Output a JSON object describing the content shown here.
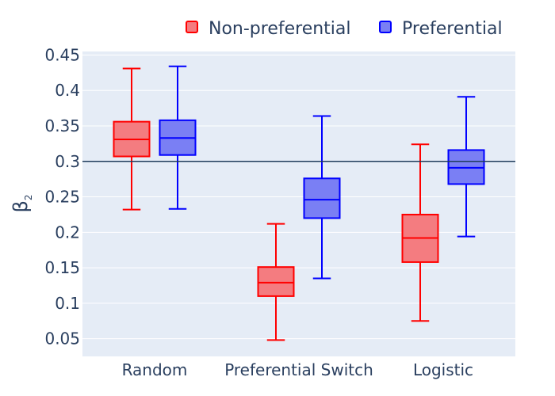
{
  "chart_data": {
    "type": "box",
    "ylabel": "β",
    "ylabel_subscript": "2",
    "ylim": [
      0.025,
      0.455
    ],
    "yticks": [
      0.05,
      0.1,
      0.15,
      0.2,
      0.25,
      0.3,
      0.35,
      0.4,
      0.45
    ],
    "ytick_labels": [
      "0.05",
      "0.1",
      "0.15",
      "0.2",
      "0.25",
      "0.3",
      "0.35",
      "0.4",
      "0.45"
    ],
    "categories": [
      "Random",
      "Preferential Switch",
      "Logistic"
    ],
    "reference_line": 0.3,
    "legend": {
      "position": "top-right",
      "orientation": "horizontal"
    },
    "series": [
      {
        "name": "Non-preferential",
        "color": "#ff0000",
        "fill": "#f47c80",
        "boxes": [
          {
            "category": "Random",
            "min": 0.232,
            "q1": 0.307,
            "median": 0.331,
            "q3": 0.356,
            "max": 0.431
          },
          {
            "category": "Preferential Switch",
            "min": 0.048,
            "q1": 0.11,
            "median": 0.129,
            "q3": 0.151,
            "max": 0.212
          },
          {
            "category": "Logistic",
            "min": 0.075,
            "q1": 0.158,
            "median": 0.192,
            "q3": 0.225,
            "max": 0.324
          }
        ]
      },
      {
        "name": "Preferential",
        "color": "#0000ff",
        "fill": "#7a7ff4",
        "boxes": [
          {
            "category": "Random",
            "min": 0.233,
            "q1": 0.309,
            "median": 0.333,
            "q3": 0.358,
            "max": 0.434
          },
          {
            "category": "Preferential Switch",
            "min": 0.135,
            "q1": 0.22,
            "median": 0.246,
            "q3": 0.276,
            "max": 0.364
          },
          {
            "category": "Logistic",
            "min": 0.194,
            "q1": 0.268,
            "median": 0.291,
            "q3": 0.316,
            "max": 0.391
          }
        ]
      }
    ],
    "colors": {
      "plot_background": "#e5ecf6",
      "gridline": "#ffffff",
      "reference_line": "#1f3b5b",
      "text": "#2a3f5f"
    }
  }
}
